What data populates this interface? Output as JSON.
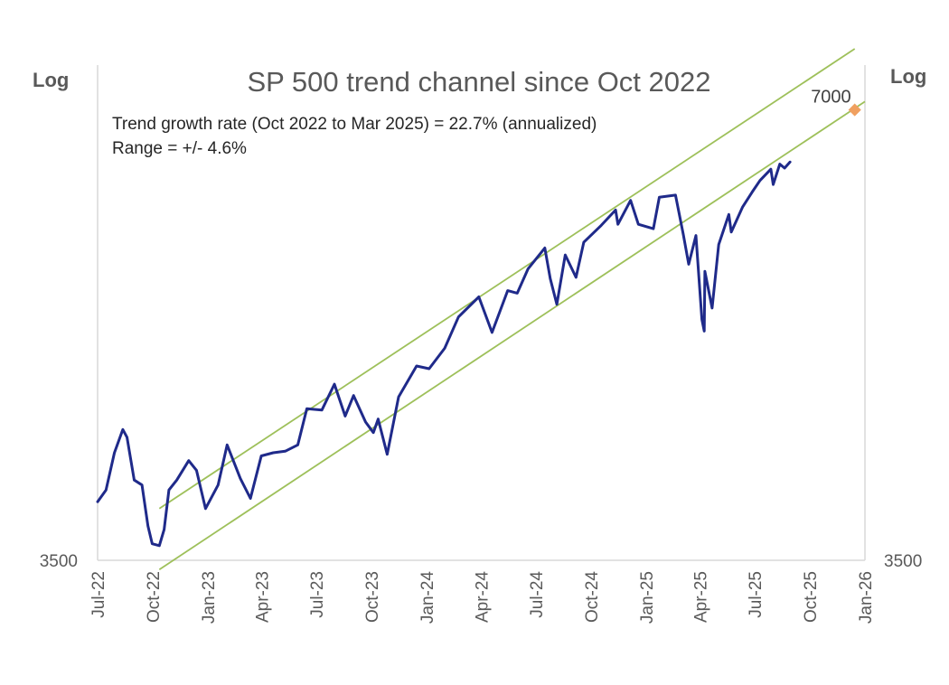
{
  "chart_data": {
    "type": "line",
    "title": "SP 500 trend channel since Oct 2022",
    "annotations": [
      "Trend growth rate (Oct 2022 to Mar 2025) = 22.7% (annualized)",
      "Range = +/- 4.6%"
    ],
    "left_axis_label": "Log",
    "right_axis_label": "Log",
    "yscale": "log",
    "ylim": [
      3500,
      7500
    ],
    "y_tick_label_left": "3500",
    "y_tick_label_right": "3500",
    "xlim": [
      "2022-07-01",
      "2026-01-01"
    ],
    "x_ticks": [
      {
        "date": "2022-07-01",
        "label": "Jul-22"
      },
      {
        "date": "2022-10-01",
        "label": "Oct-22"
      },
      {
        "date": "2023-01-01",
        "label": "Jan-23"
      },
      {
        "date": "2023-04-01",
        "label": "Apr-23"
      },
      {
        "date": "2023-07-01",
        "label": "Jul-23"
      },
      {
        "date": "2023-10-01",
        "label": "Oct-23"
      },
      {
        "date": "2024-01-01",
        "label": "Jan-24"
      },
      {
        "date": "2024-04-01",
        "label": "Apr-24"
      },
      {
        "date": "2024-07-01",
        "label": "Jul-24"
      },
      {
        "date": "2024-10-01",
        "label": "Oct-24"
      },
      {
        "date": "2025-01-01",
        "label": "Jan-25"
      },
      {
        "date": "2025-04-01",
        "label": "Apr-25"
      },
      {
        "date": "2025-07-01",
        "label": "Jul-25"
      },
      {
        "date": "2025-10-01",
        "label": "Oct-25"
      },
      {
        "date": "2026-01-01",
        "label": "Jan-26"
      }
    ],
    "grid": false,
    "series": [
      {
        "color": "#1f2a8a",
        "points": [
          [
            "2022-07-01",
            3830
          ],
          [
            "2022-07-15",
            3900
          ],
          [
            "2022-07-29",
            4130
          ],
          [
            "2022-08-12",
            4280
          ],
          [
            "2022-08-19",
            4230
          ],
          [
            "2022-08-31",
            3960
          ],
          [
            "2022-09-13",
            3930
          ],
          [
            "2022-09-23",
            3690
          ],
          [
            "2022-09-30",
            3590
          ],
          [
            "2022-10-12",
            3580
          ],
          [
            "2022-10-20",
            3670
          ],
          [
            "2022-10-28",
            3900
          ],
          [
            "2022-11-10",
            3960
          ],
          [
            "2022-11-30",
            4080
          ],
          [
            "2022-12-13",
            4020
          ],
          [
            "2022-12-28",
            3790
          ],
          [
            "2023-01-18",
            3930
          ],
          [
            "2023-02-02",
            4180
          ],
          [
            "2023-02-24",
            3970
          ],
          [
            "2023-03-13",
            3850
          ],
          [
            "2023-03-31",
            4110
          ],
          [
            "2023-04-20",
            4130
          ],
          [
            "2023-05-10",
            4140
          ],
          [
            "2023-05-31",
            4180
          ],
          [
            "2023-06-15",
            4420
          ],
          [
            "2023-07-10",
            4410
          ],
          [
            "2023-07-31",
            4590
          ],
          [
            "2023-08-18",
            4370
          ],
          [
            "2023-09-01",
            4510
          ],
          [
            "2023-09-21",
            4330
          ],
          [
            "2023-10-04",
            4260
          ],
          [
            "2023-10-12",
            4350
          ],
          [
            "2023-10-27",
            4120
          ],
          [
            "2023-11-15",
            4500
          ],
          [
            "2023-12-15",
            4720
          ],
          [
            "2024-01-05",
            4700
          ],
          [
            "2024-01-31",
            4850
          ],
          [
            "2024-02-23",
            5090
          ],
          [
            "2024-03-28",
            5250
          ],
          [
            "2024-04-19",
            4970
          ],
          [
            "2024-05-15",
            5300
          ],
          [
            "2024-05-31",
            5280
          ],
          [
            "2024-06-18",
            5480
          ],
          [
            "2024-07-16",
            5660
          ],
          [
            "2024-07-25",
            5400
          ],
          [
            "2024-08-05",
            5190
          ],
          [
            "2024-08-19",
            5600
          ],
          [
            "2024-09-06",
            5410
          ],
          [
            "2024-09-19",
            5710
          ],
          [
            "2024-10-18",
            5860
          ],
          [
            "2024-11-11",
            6000
          ],
          [
            "2024-11-15",
            5870
          ],
          [
            "2024-12-06",
            6090
          ],
          [
            "2024-12-19",
            5870
          ],
          [
            "2025-01-13",
            5830
          ],
          [
            "2025-01-23",
            6120
          ],
          [
            "2025-02-19",
            6140
          ],
          [
            "2025-03-04",
            5780
          ],
          [
            "2025-03-13",
            5520
          ],
          [
            "2025-03-25",
            5770
          ],
          [
            "2025-04-04",
            5070
          ],
          [
            "2025-04-08",
            4980
          ],
          [
            "2025-04-09",
            5460
          ],
          [
            "2025-04-21",
            5160
          ],
          [
            "2025-05-02",
            5690
          ],
          [
            "2025-05-19",
            5960
          ],
          [
            "2025-05-23",
            5800
          ],
          [
            "2025-06-11",
            6030
          ],
          [
            "2025-06-27",
            6170
          ],
          [
            "2025-07-10",
            6280
          ],
          [
            "2025-07-28",
            6390
          ],
          [
            "2025-08-01",
            6240
          ],
          [
            "2025-08-12",
            6440
          ],
          [
            "2025-08-20",
            6400
          ],
          [
            "2025-08-29",
            6460
          ]
        ]
      }
    ],
    "trend_channel": {
      "color": "#9ec05a",
      "upper": [
        [
          "2022-10-12",
          3790
        ],
        [
          "2025-12-15",
          7690
        ]
      ],
      "lower": [
        [
          "2022-10-12",
          3450
        ],
        [
          "2026-01-01",
          7090
        ]
      ]
    },
    "marker": {
      "date": "2025-12-15",
      "value": 7000,
      "label": "7000",
      "color": "#f0a060"
    }
  }
}
